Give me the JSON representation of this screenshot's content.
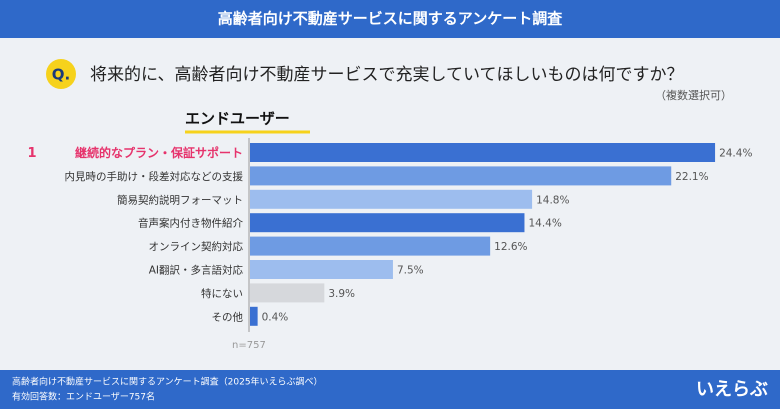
{
  "header": {
    "title": "高齢者向け不動産サービスに関するアンケート調査"
  },
  "question": {
    "badge": "Q.",
    "text": "将来的に、高齢者向け不動産サービスで充実していてほしいものは何ですか？",
    "note": "（複数選択可）"
  },
  "chart_data": {
    "type": "bar",
    "orientation": "horizontal",
    "title": "エンドユーザー",
    "categories": [
      "継続的なプラン・保証サポート",
      "内見時の手助け・段差対応などの支援",
      "簡易契約説明フォーマット",
      "音声案内付き物件紹介",
      "オンライン契約対応",
      "AI翻訳・多言語対応",
      "特にない",
      "その他"
    ],
    "values": [
      24.4,
      22.1,
      14.8,
      14.4,
      12.6,
      7.5,
      3.9,
      0.4
    ],
    "value_labels": [
      "24.4%",
      "22.1%",
      "14.8%",
      "14.4%",
      "12.6%",
      "7.5%",
      "3.9%",
      "0.4%"
    ],
    "colors": [
      "#3a70d2",
      "#6e9be3",
      "#9dbdee",
      "#3a70d2",
      "#6e9be3",
      "#9dbdee",
      "#d6d8dc",
      "#3a70d2"
    ],
    "rank_label": "1",
    "rank_color": "#e6336c",
    "sample_note": "n=757"
  },
  "footer": {
    "source": "高齢者向け不動産サービスに関するアンケート調査（2025年いえらぶ調べ）",
    "respondents": "有効回答数：エンドユーザー757名",
    "logo": "いえらぶ"
  }
}
